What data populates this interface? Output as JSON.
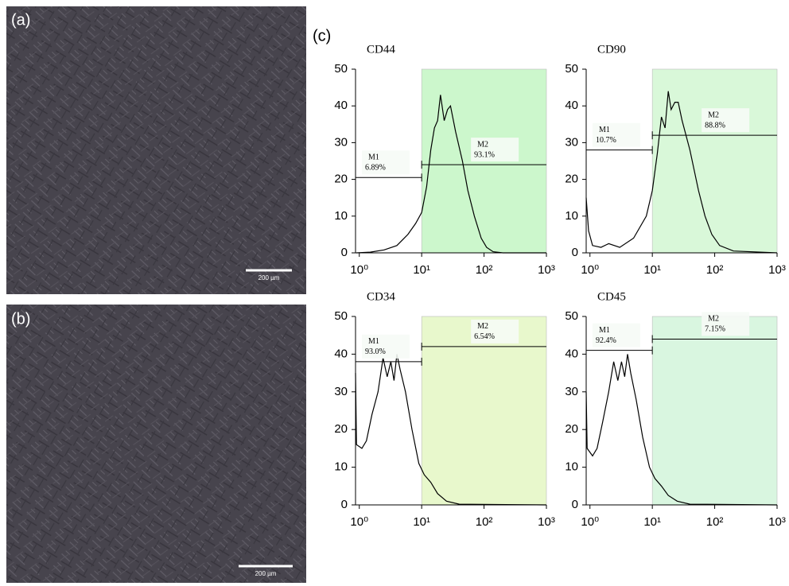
{
  "images": [
    {
      "label": "(a)",
      "scale_bar": "200 µm"
    },
    {
      "label": "(b)",
      "scale_bar": "200 µm"
    }
  ],
  "panel_label": "(c)",
  "chart_data": [
    {
      "type": "line",
      "title": "CD44",
      "xscale": "log",
      "color": "#000000",
      "shade_color": "#ccf7cc",
      "x": [
        0.9,
        1.5,
        2.5,
        4,
        6,
        8,
        10,
        12,
        14,
        16,
        18,
        20,
        23,
        26,
        29,
        35,
        45,
        55,
        70,
        90,
        110,
        140,
        200,
        1000
      ],
      "values": [
        0,
        0.2,
        0.8,
        2,
        5,
        8,
        11,
        18,
        28,
        34,
        36,
        43,
        36,
        39,
        40,
        33,
        25,
        17,
        10,
        4,
        1.5,
        0.3,
        0,
        0
      ],
      "xlim": [
        0.87,
        1000
      ],
      "ylim": [
        0,
        50
      ],
      "xticks": [
        {
          "value": 1,
          "label": "10⁰"
        },
        {
          "value": 10,
          "label": "10¹"
        },
        {
          "value": 100,
          "label": "10²"
        },
        {
          "value": 1000,
          "label": "10³"
        }
      ],
      "yticks": [
        0,
        10,
        20,
        30,
        40,
        50
      ],
      "gates": {
        "names": [
          "M1",
          "M2"
        ],
        "values": [
          6.89,
          93.1
        ],
        "value_labels": [
          "6.89%",
          "93.1%"
        ],
        "ranges": [
          [
            0.87,
            10
          ],
          [
            10,
            1000
          ]
        ],
        "levels": [
          20.5,
          24
        ]
      }
    },
    {
      "type": "line",
      "title": "CD90",
      "xscale": "log",
      "color": "#000000",
      "shade_color": "#d9f8d9",
      "x": [
        0.87,
        0.95,
        1.1,
        1.5,
        2,
        3,
        5,
        8,
        10,
        12,
        14,
        16,
        18,
        20,
        23,
        26,
        30,
        40,
        55,
        70,
        90,
        120,
        200,
        1000
      ],
      "values": [
        15,
        6,
        2,
        1.5,
        2.5,
        1.5,
        4,
        10,
        17,
        27,
        37,
        34,
        44,
        39,
        41,
        41,
        36,
        28,
        17,
        10,
        5,
        2,
        0.5,
        0
      ],
      "xlim": [
        0.87,
        1000
      ],
      "ylim": [
        0,
        50
      ],
      "xticks": [
        {
          "value": 1,
          "label": "10⁰"
        },
        {
          "value": 10,
          "label": "10¹"
        },
        {
          "value": 100,
          "label": "10²"
        },
        {
          "value": 1000,
          "label": "10³"
        }
      ],
      "yticks": [
        0,
        10,
        20,
        30,
        40,
        50
      ],
      "gates": {
        "names": [
          "M1",
          "M2"
        ],
        "values": [
          10.7,
          88.8
        ],
        "value_labels": [
          "10.7%",
          "88.8%"
        ],
        "ranges": [
          [
            0.87,
            10
          ],
          [
            10,
            1000
          ]
        ],
        "levels": [
          28,
          32
        ]
      }
    },
    {
      "type": "line",
      "title": "CD34",
      "xscale": "log",
      "color": "#000000",
      "shade_color": "#e8f8cc",
      "x": [
        0.87,
        0.9,
        1.1,
        1.3,
        1.6,
        2,
        2.4,
        2.8,
        3.2,
        3.6,
        4,
        4.5,
        5.5,
        7,
        9,
        11,
        14,
        18,
        25,
        40,
        1000
      ],
      "values": [
        35,
        16,
        15,
        17,
        24,
        30,
        39,
        34,
        38,
        33,
        40,
        36,
        30,
        20,
        11,
        8,
        6,
        3,
        1,
        0.2,
        0
      ],
      "xlim": [
        0.87,
        1000
      ],
      "ylim": [
        0,
        50
      ],
      "xticks": [
        {
          "value": 1,
          "label": "10⁰"
        },
        {
          "value": 10,
          "label": "10¹"
        },
        {
          "value": 100,
          "label": "10²"
        },
        {
          "value": 1000,
          "label": "10³"
        }
      ],
      "yticks": [
        0,
        10,
        20,
        30,
        40,
        50
      ],
      "gates": {
        "names": [
          "M1",
          "M2"
        ],
        "values": [
          93.0,
          6.54
        ],
        "value_labels": [
          "93.0%",
          "6.54%"
        ],
        "ranges": [
          [
            0.87,
            10
          ],
          [
            10,
            1000
          ]
        ],
        "levels": [
          38,
          42
        ]
      }
    },
    {
      "type": "line",
      "title": "CD45",
      "xscale": "log",
      "color": "#000000",
      "shade_color": "#d9f6e0",
      "x": [
        0.87,
        0.9,
        1.1,
        1.3,
        1.6,
        2,
        2.4,
        2.8,
        3.2,
        3.6,
        4,
        4.5,
        5.5,
        7,
        9,
        11,
        14,
        18,
        25,
        40,
        1000
      ],
      "values": [
        30,
        15,
        13,
        15,
        22,
        30,
        38,
        33,
        38,
        34,
        40,
        35,
        28,
        18,
        10,
        7,
        5,
        2.5,
        1,
        0.2,
        0
      ],
      "xlim": [
        0.87,
        1000
      ],
      "ylim": [
        0,
        50
      ],
      "xticks": [
        {
          "value": 1,
          "label": "10⁰"
        },
        {
          "value": 10,
          "label": "10¹"
        },
        {
          "value": 100,
          "label": "10²"
        },
        {
          "value": 1000,
          "label": "10³"
        }
      ],
      "yticks": [
        0,
        10,
        20,
        30,
        40,
        50
      ],
      "gates": {
        "names": [
          "M1",
          "M2"
        ],
        "values": [
          92.4,
          7.15
        ],
        "value_labels": [
          "92.4%",
          "7.15%"
        ],
        "ranges": [
          [
            0.87,
            10
          ],
          [
            10,
            1000
          ]
        ],
        "levels": [
          41,
          44
        ]
      }
    }
  ]
}
